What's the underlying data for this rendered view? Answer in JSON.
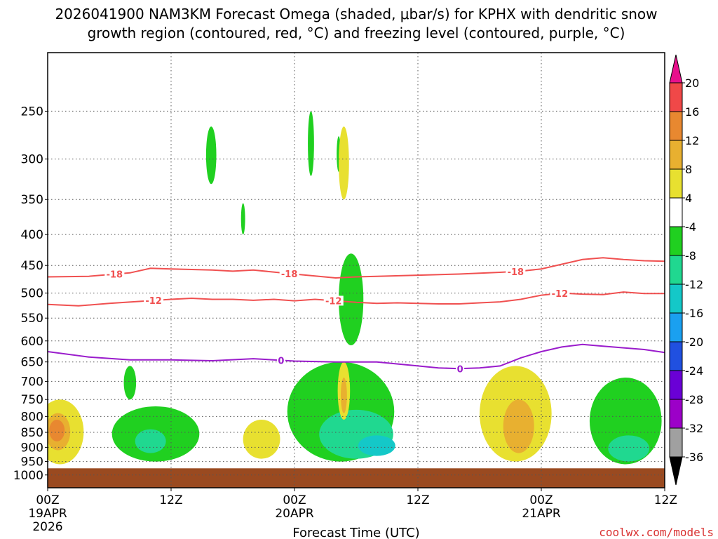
{
  "chart_data": {
    "type": "contour",
    "title_line1": "2026041900 NAM3KM Forecast Omega (shaded, μbar/s) for KPHX with dendritic snow",
    "title_line2": "growth region (contoured, red, °C) and freezing level (contoured, purple, °C)",
    "xlabel": "Forecast Time (UTC)",
    "ylabel": "",
    "credit": "coolwx.com/models",
    "x_axis": {
      "units": "forecast hour",
      "range": [
        0,
        60
      ],
      "ticks": [
        {
          "hour": 0,
          "label": "00Z",
          "sub1": "19APR",
          "sub2": "2026"
        },
        {
          "hour": 12,
          "label": "12Z",
          "sub1": "",
          "sub2": ""
        },
        {
          "hour": 24,
          "label": "00Z",
          "sub1": "20APR",
          "sub2": ""
        },
        {
          "hour": 36,
          "label": "12Z",
          "sub1": "",
          "sub2": ""
        },
        {
          "hour": 48,
          "label": "00Z",
          "sub1": "21APR",
          "sub2": ""
        },
        {
          "hour": 60,
          "label": "12Z",
          "sub1": "",
          "sub2": ""
        }
      ]
    },
    "y_axis": {
      "units": "hPa",
      "scale": "log-inverted",
      "range": [
        1050,
        200
      ],
      "ticks": [
        250,
        300,
        350,
        400,
        450,
        500,
        550,
        600,
        650,
        700,
        750,
        800,
        850,
        900,
        950,
        1000
      ]
    },
    "ground_level_hPa": 975,
    "colorbar": {
      "levels": [
        -36,
        -32,
        -28,
        -24,
        -20,
        -16,
        -12,
        -8,
        -4,
        4,
        8,
        12,
        16,
        20
      ],
      "colors": [
        "#000000",
        "#a0a0a0",
        "#9c00c8",
        "#6a00d6",
        "#2050e0",
        "#1aa0f0",
        "#14c8c8",
        "#20d890",
        "#20d020",
        "#ffffff",
        "#e8e030",
        "#e8b030",
        "#e88830",
        "#f04848",
        "#e8108c"
      ]
    },
    "contour_lines": [
      {
        "name": "-18",
        "color": "#f05050",
        "x": [
          0,
          4,
          8,
          10,
          12,
          16,
          18,
          20,
          24,
          28,
          30,
          32,
          36,
          40,
          44,
          46,
          48,
          50,
          52,
          54,
          56,
          58,
          60
        ],
        "p": [
          470,
          469,
          463,
          455,
          456,
          458,
          460,
          458,
          465,
          472,
          470,
          469,
          467,
          465,
          462,
          460,
          456,
          448,
          440,
          437,
          440,
          442,
          443
        ],
        "labels": [
          {
            "x": 6.5,
            "text": "-18"
          },
          {
            "x": 23.5,
            "text": "-18"
          },
          {
            "x": 45.5,
            "text": "-18"
          }
        ]
      },
      {
        "name": "-12",
        "color": "#f05050",
        "x": [
          0,
          3,
          6,
          9,
          12,
          14,
          16,
          18,
          20,
          22,
          24,
          26,
          28,
          30,
          32,
          34,
          36,
          38,
          40,
          42,
          44,
          46,
          48,
          50,
          52,
          54,
          56,
          58,
          60
        ],
        "p": [
          522,
          525,
          520,
          516,
          512,
          510,
          512,
          512,
          514,
          512,
          515,
          512,
          515,
          518,
          520,
          519,
          520,
          521,
          521,
          519,
          517,
          512,
          504,
          500,
          502,
          503,
          498,
          501,
          501
        ],
        "labels": [
          {
            "x": 10.3,
            "text": "-12"
          },
          {
            "x": 27.8,
            "text": "-12"
          },
          {
            "x": 49.8,
            "text": "-12"
          }
        ]
      },
      {
        "name": "0",
        "color": "#9a1ccc",
        "x": [
          0,
          4,
          8,
          12,
          16,
          20,
          24,
          28,
          32,
          36,
          38,
          40,
          42,
          44,
          46,
          48,
          50,
          52,
          54,
          56,
          58,
          60
        ],
        "p": [
          625,
          638,
          645,
          645,
          647,
          642,
          648,
          650,
          650,
          660,
          665,
          667,
          665,
          660,
          640,
          625,
          614,
          608,
          612,
          616,
          620,
          627
        ],
        "labels": [
          {
            "x": 22.7,
            "text": "0"
          },
          {
            "x": 40.1,
            "text": "0"
          }
        ]
      }
    ],
    "shaded_regions": [
      {
        "value": 4,
        "color": "#e8e030",
        "center": [
          1.2,
          850
        ],
        "span_hours": 4.6,
        "span_hPa": [
          750,
          960
        ]
      },
      {
        "value": 8,
        "color": "#e8b030",
        "center": [
          1.0,
          845
        ],
        "span_hours": 2.4,
        "span_hPa": [
          790,
          910
        ]
      },
      {
        "value": 12,
        "color": "#e88830",
        "center": [
          0.9,
          840
        ],
        "span_hours": 1.5,
        "span_hPa": [
          810,
          880
        ]
      },
      {
        "value": -4,
        "color": "#20d020",
        "center": [
          10.5,
          870
        ],
        "span_hours": 8.5,
        "span_hPa": [
          770,
          950
        ]
      },
      {
        "value": -8,
        "color": "#20d890",
        "center": [
          10.0,
          880
        ],
        "span_hours": 3.0,
        "span_hPa": [
          840,
          920
        ]
      },
      {
        "value": -4,
        "color": "#20d020",
        "center": [
          8.0,
          710
        ],
        "span_hours": 1.2,
        "span_hPa": [
          660,
          750
        ]
      },
      {
        "value": -4,
        "color": "#20d020",
        "center": [
          15.9,
          295
        ],
        "span_hours": 1.0,
        "span_hPa": [
          265,
          330
        ]
      },
      {
        "value": -4,
        "color": "#20d020",
        "center": [
          19.0,
          378
        ],
        "span_hours": 0.4,
        "span_hPa": [
          355,
          400
        ]
      },
      {
        "value": 4,
        "color": "#e8e030",
        "center": [
          20.8,
          865
        ],
        "span_hours": 3.6,
        "span_hPa": [
          810,
          940
        ]
      },
      {
        "value": -4,
        "color": "#20d020",
        "center": [
          25.6,
          282
        ],
        "span_hours": 0.6,
        "span_hPa": [
          250,
          320
        ]
      },
      {
        "value": -4,
        "color": "#20d020",
        "center": [
          28.3,
          295
        ],
        "span_hours": 0.4,
        "span_hPa": [
          275,
          315
        ]
      },
      {
        "value": 4,
        "color": "#e8e030",
        "center": [
          28.8,
          310
        ],
        "span_hours": 1.0,
        "span_hPa": [
          265,
          350
        ]
      },
      {
        "value": -4,
        "color": "#20d020",
        "center": [
          29.5,
          520
        ],
        "span_hours": 2.4,
        "span_hPa": [
          430,
          610
        ]
      },
      {
        "value": -4,
        "color": "#20d020",
        "center": [
          28.5,
          810
        ],
        "span_hours": 10.4,
        "span_hPa": [
          650,
          950
        ]
      },
      {
        "value": -8,
        "color": "#20d890",
        "center": [
          30.0,
          860
        ],
        "span_hours": 7.2,
        "span_hPa": [
          780,
          940
        ]
      },
      {
        "value": -12,
        "color": "#14c8c8",
        "center": [
          32.0,
          890
        ],
        "span_hours": 3.6,
        "span_hPa": [
          860,
          930
        ]
      },
      {
        "value": 4,
        "color": "#e8e030",
        "center": [
          28.8,
          740
        ],
        "span_hours": 1.2,
        "span_hPa": [
          650,
          810
        ]
      },
      {
        "value": 8,
        "color": "#e8b030",
        "center": [
          28.8,
          740
        ],
        "span_hours": 0.6,
        "span_hPa": [
          690,
          790
        ]
      },
      {
        "value": 4,
        "color": "#e8e030",
        "center": [
          45.5,
          820
        ],
        "span_hours": 7.0,
        "span_hPa": [
          660,
          950
        ]
      },
      {
        "value": 8,
        "color": "#e8b030",
        "center": [
          45.8,
          835
        ],
        "span_hours": 3.0,
        "span_hPa": [
          750,
          920
        ]
      },
      {
        "value": -4,
        "color": "#20d020",
        "center": [
          56.2,
          850
        ],
        "span_hours": 7.0,
        "span_hPa": [
          690,
          960
        ]
      },
      {
        "value": -8,
        "color": "#20d890",
        "center": [
          56.5,
          900
        ],
        "span_hours": 4.0,
        "span_hPa": [
          860,
          950
        ]
      }
    ]
  }
}
